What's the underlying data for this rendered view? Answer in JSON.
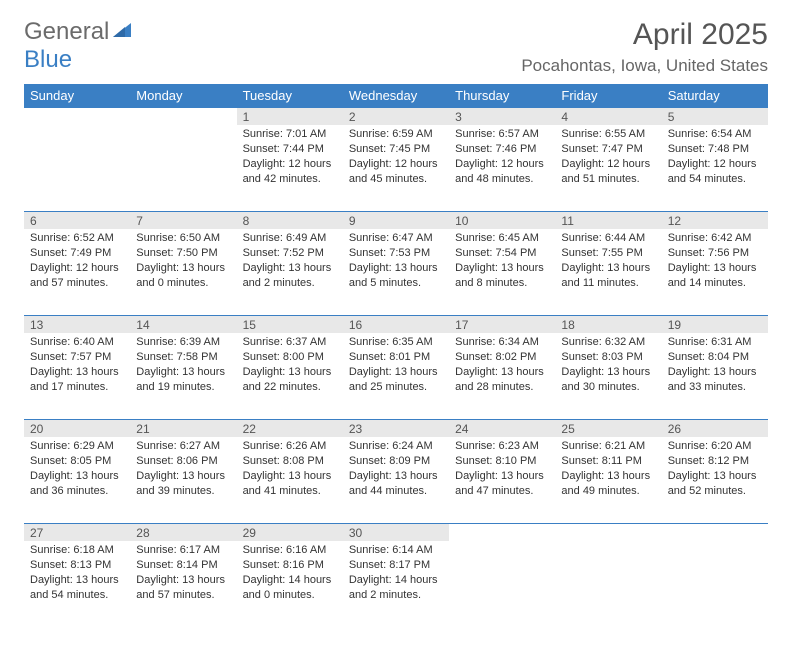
{
  "logo": {
    "part1": "General",
    "part2": "Blue"
  },
  "title": "April 2025",
  "location": "Pocahontas, Iowa, United States",
  "colors": {
    "header_bg": "#3a7fc4",
    "header_text": "#ffffff",
    "daynum_bg": "#e8e8e8",
    "border": "#3a7fc4",
    "page_bg": "#ffffff",
    "body_text": "#333333",
    "title_text": "#555555",
    "logo_gray": "#6b6b6b",
    "logo_blue": "#3a7fc4"
  },
  "day_headers": [
    "Sunday",
    "Monday",
    "Tuesday",
    "Wednesday",
    "Thursday",
    "Friday",
    "Saturday"
  ],
  "weeks": [
    [
      null,
      null,
      {
        "n": "1",
        "sunrise": "Sunrise: 7:01 AM",
        "sunset": "Sunset: 7:44 PM",
        "daylight": "Daylight: 12 hours and 42 minutes."
      },
      {
        "n": "2",
        "sunrise": "Sunrise: 6:59 AM",
        "sunset": "Sunset: 7:45 PM",
        "daylight": "Daylight: 12 hours and 45 minutes."
      },
      {
        "n": "3",
        "sunrise": "Sunrise: 6:57 AM",
        "sunset": "Sunset: 7:46 PM",
        "daylight": "Daylight: 12 hours and 48 minutes."
      },
      {
        "n": "4",
        "sunrise": "Sunrise: 6:55 AM",
        "sunset": "Sunset: 7:47 PM",
        "daylight": "Daylight: 12 hours and 51 minutes."
      },
      {
        "n": "5",
        "sunrise": "Sunrise: 6:54 AM",
        "sunset": "Sunset: 7:48 PM",
        "daylight": "Daylight: 12 hours and 54 minutes."
      }
    ],
    [
      {
        "n": "6",
        "sunrise": "Sunrise: 6:52 AM",
        "sunset": "Sunset: 7:49 PM",
        "daylight": "Daylight: 12 hours and 57 minutes."
      },
      {
        "n": "7",
        "sunrise": "Sunrise: 6:50 AM",
        "sunset": "Sunset: 7:50 PM",
        "daylight": "Daylight: 13 hours and 0 minutes."
      },
      {
        "n": "8",
        "sunrise": "Sunrise: 6:49 AM",
        "sunset": "Sunset: 7:52 PM",
        "daylight": "Daylight: 13 hours and 2 minutes."
      },
      {
        "n": "9",
        "sunrise": "Sunrise: 6:47 AM",
        "sunset": "Sunset: 7:53 PM",
        "daylight": "Daylight: 13 hours and 5 minutes."
      },
      {
        "n": "10",
        "sunrise": "Sunrise: 6:45 AM",
        "sunset": "Sunset: 7:54 PM",
        "daylight": "Daylight: 13 hours and 8 minutes."
      },
      {
        "n": "11",
        "sunrise": "Sunrise: 6:44 AM",
        "sunset": "Sunset: 7:55 PM",
        "daylight": "Daylight: 13 hours and 11 minutes."
      },
      {
        "n": "12",
        "sunrise": "Sunrise: 6:42 AM",
        "sunset": "Sunset: 7:56 PM",
        "daylight": "Daylight: 13 hours and 14 minutes."
      }
    ],
    [
      {
        "n": "13",
        "sunrise": "Sunrise: 6:40 AM",
        "sunset": "Sunset: 7:57 PM",
        "daylight": "Daylight: 13 hours and 17 minutes."
      },
      {
        "n": "14",
        "sunrise": "Sunrise: 6:39 AM",
        "sunset": "Sunset: 7:58 PM",
        "daylight": "Daylight: 13 hours and 19 minutes."
      },
      {
        "n": "15",
        "sunrise": "Sunrise: 6:37 AM",
        "sunset": "Sunset: 8:00 PM",
        "daylight": "Daylight: 13 hours and 22 minutes."
      },
      {
        "n": "16",
        "sunrise": "Sunrise: 6:35 AM",
        "sunset": "Sunset: 8:01 PM",
        "daylight": "Daylight: 13 hours and 25 minutes."
      },
      {
        "n": "17",
        "sunrise": "Sunrise: 6:34 AM",
        "sunset": "Sunset: 8:02 PM",
        "daylight": "Daylight: 13 hours and 28 minutes."
      },
      {
        "n": "18",
        "sunrise": "Sunrise: 6:32 AM",
        "sunset": "Sunset: 8:03 PM",
        "daylight": "Daylight: 13 hours and 30 minutes."
      },
      {
        "n": "19",
        "sunrise": "Sunrise: 6:31 AM",
        "sunset": "Sunset: 8:04 PM",
        "daylight": "Daylight: 13 hours and 33 minutes."
      }
    ],
    [
      {
        "n": "20",
        "sunrise": "Sunrise: 6:29 AM",
        "sunset": "Sunset: 8:05 PM",
        "daylight": "Daylight: 13 hours and 36 minutes."
      },
      {
        "n": "21",
        "sunrise": "Sunrise: 6:27 AM",
        "sunset": "Sunset: 8:06 PM",
        "daylight": "Daylight: 13 hours and 39 minutes."
      },
      {
        "n": "22",
        "sunrise": "Sunrise: 6:26 AM",
        "sunset": "Sunset: 8:08 PM",
        "daylight": "Daylight: 13 hours and 41 minutes."
      },
      {
        "n": "23",
        "sunrise": "Sunrise: 6:24 AM",
        "sunset": "Sunset: 8:09 PM",
        "daylight": "Daylight: 13 hours and 44 minutes."
      },
      {
        "n": "24",
        "sunrise": "Sunrise: 6:23 AM",
        "sunset": "Sunset: 8:10 PM",
        "daylight": "Daylight: 13 hours and 47 minutes."
      },
      {
        "n": "25",
        "sunrise": "Sunrise: 6:21 AM",
        "sunset": "Sunset: 8:11 PM",
        "daylight": "Daylight: 13 hours and 49 minutes."
      },
      {
        "n": "26",
        "sunrise": "Sunrise: 6:20 AM",
        "sunset": "Sunset: 8:12 PM",
        "daylight": "Daylight: 13 hours and 52 minutes."
      }
    ],
    [
      {
        "n": "27",
        "sunrise": "Sunrise: 6:18 AM",
        "sunset": "Sunset: 8:13 PM",
        "daylight": "Daylight: 13 hours and 54 minutes."
      },
      {
        "n": "28",
        "sunrise": "Sunrise: 6:17 AM",
        "sunset": "Sunset: 8:14 PM",
        "daylight": "Daylight: 13 hours and 57 minutes."
      },
      {
        "n": "29",
        "sunrise": "Sunrise: 6:16 AM",
        "sunset": "Sunset: 8:16 PM",
        "daylight": "Daylight: 14 hours and 0 minutes."
      },
      {
        "n": "30",
        "sunrise": "Sunrise: 6:14 AM",
        "sunset": "Sunset: 8:17 PM",
        "daylight": "Daylight: 14 hours and 2 minutes."
      },
      null,
      null,
      null
    ]
  ]
}
